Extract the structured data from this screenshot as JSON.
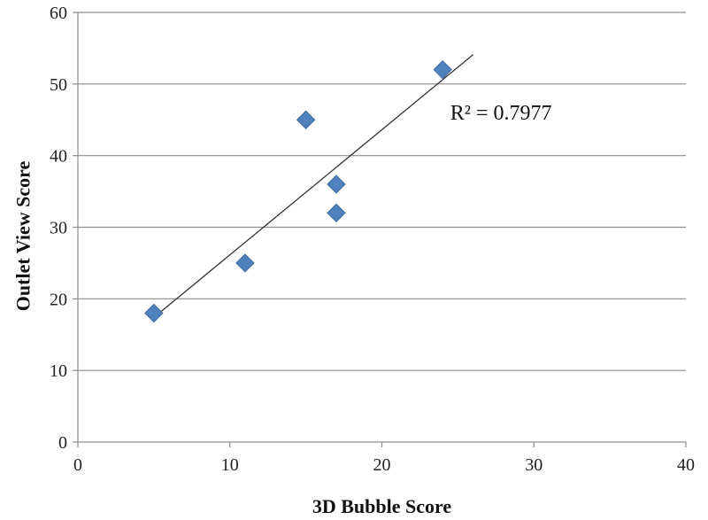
{
  "chart_data": {
    "type": "scatter",
    "title": "",
    "xlabel": "3D Bubble Score",
    "ylabel": "Outlet View Score",
    "xlim": [
      0,
      40
    ],
    "ylim": [
      0,
      60
    ],
    "x_ticks": [
      0,
      10,
      20,
      30,
      40
    ],
    "y_ticks": [
      0,
      10,
      20,
      30,
      40,
      50,
      60
    ],
    "grid": "horizontal",
    "legend": "none",
    "series": [
      {
        "color": "#4F81BD",
        "marker": "diamond",
        "points": [
          {
            "x": 5,
            "y": 18
          },
          {
            "x": 11,
            "y": 25
          },
          {
            "x": 15,
            "y": 45
          },
          {
            "x": 17,
            "y": 36
          },
          {
            "x": 17,
            "y": 32
          },
          {
            "x": 24,
            "y": 52
          }
        ]
      }
    ],
    "trendline": {
      "type": "linear",
      "color": "#333333",
      "x_start": 5,
      "y_start": 17.4,
      "x_end": 26,
      "y_end": 54.1
    },
    "annotation": {
      "text": "R² = 0.7977",
      "x": 24.5,
      "y": 46
    }
  }
}
